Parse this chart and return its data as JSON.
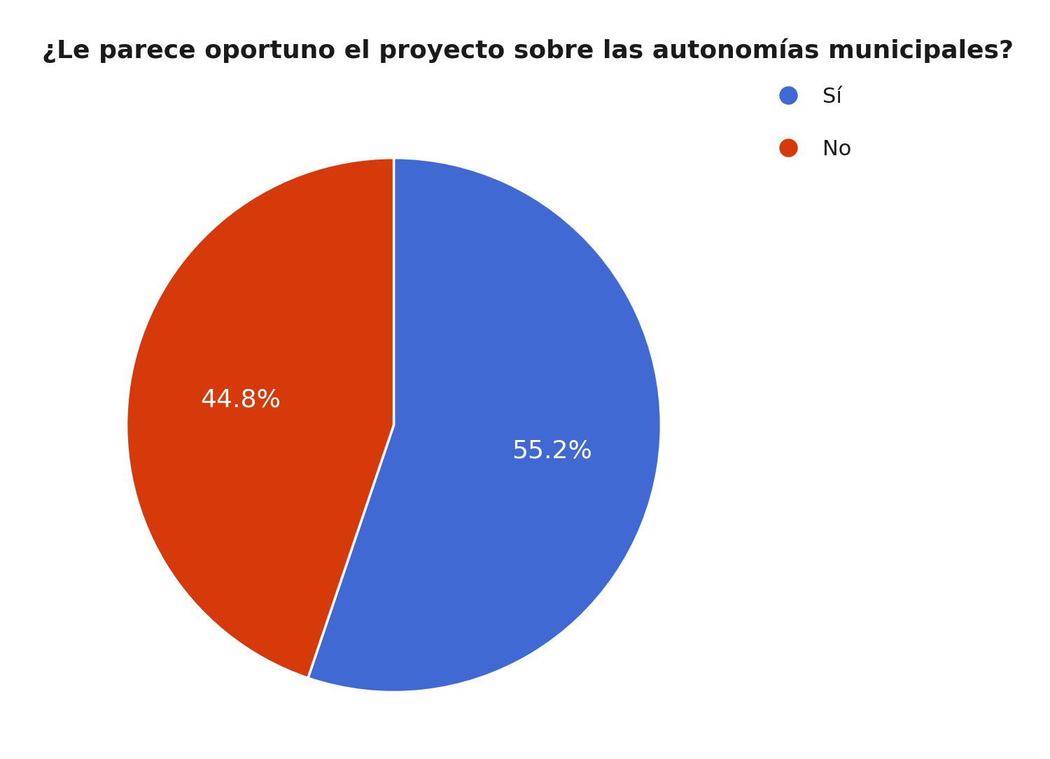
{
  "title": "¿Le parece oportuno el proyecto sobre las autonomías municipales?",
  "labels": [
    "Sí",
    "No"
  ],
  "values": [
    55.2,
    44.8
  ],
  "colors": [
    "#4169d4",
    "#d63a0a"
  ],
  "text_colors": [
    "white",
    "white"
  ],
  "pct_labels": [
    "55.2%",
    "44.8%"
  ],
  "legend_labels": [
    "Sí",
    "No"
  ],
  "title_fontsize": 26,
  "pct_fontsize": 26,
  "legend_fontsize": 22,
  "background_color": "#ffffff",
  "startangle": 90
}
